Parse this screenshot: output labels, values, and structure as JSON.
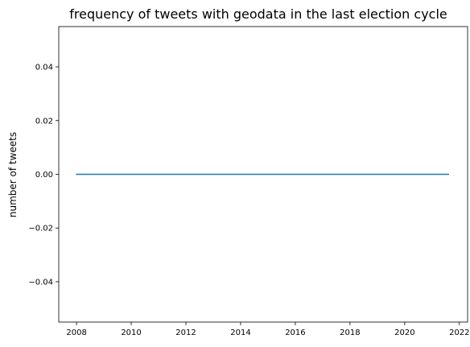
{
  "chart_data": {
    "type": "line",
    "title": "frequency of tweets with geodata in the last election cycle",
    "xlabel": "",
    "ylabel": "number of tweets",
    "xlim": [
      2007.35,
      2022.3
    ],
    "ylim": [
      -0.055,
      0.055
    ],
    "x_ticks": [
      2008,
      2010,
      2012,
      2014,
      2016,
      2018,
      2020,
      2022
    ],
    "x_tick_labels": [
      "2008",
      "2010",
      "2012",
      "2014",
      "2016",
      "2018",
      "2020",
      "2022"
    ],
    "y_ticks": [
      0.04,
      0.02,
      0.0,
      -0.02,
      -0.04
    ],
    "y_tick_labels": [
      "0.04",
      "0.02",
      "0.00",
      "−0.02",
      "−0.04"
    ],
    "grid": false,
    "series": [
      {
        "x": [
          2008.0,
          2021.6
        ],
        "y": [
          0.0,
          0.0
        ],
        "color": "#1f77b4"
      }
    ]
  }
}
